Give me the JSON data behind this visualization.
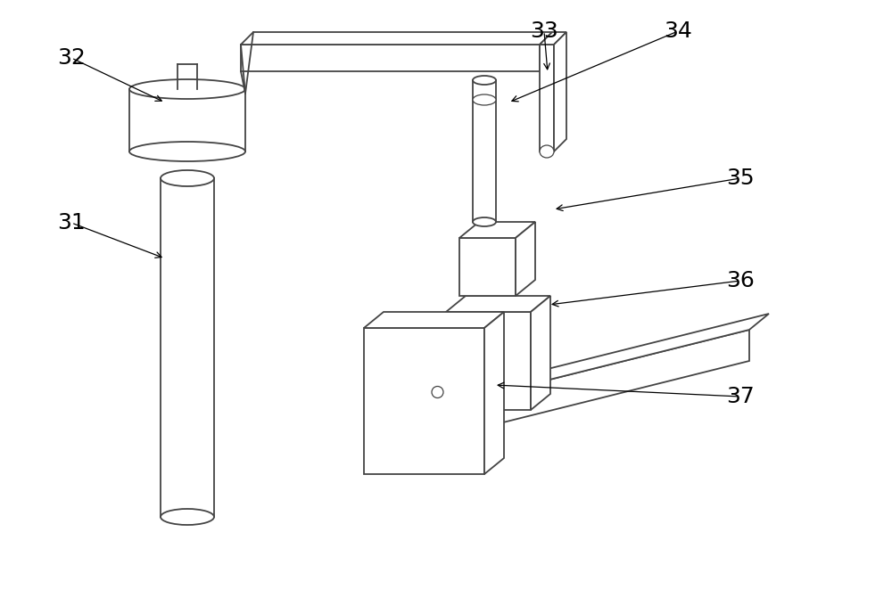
{
  "bg_color": "#ffffff",
  "line_color": "#444444",
  "label_color": "#000000",
  "figsize": [
    10.0,
    6.8
  ],
  "dpi": 100
}
